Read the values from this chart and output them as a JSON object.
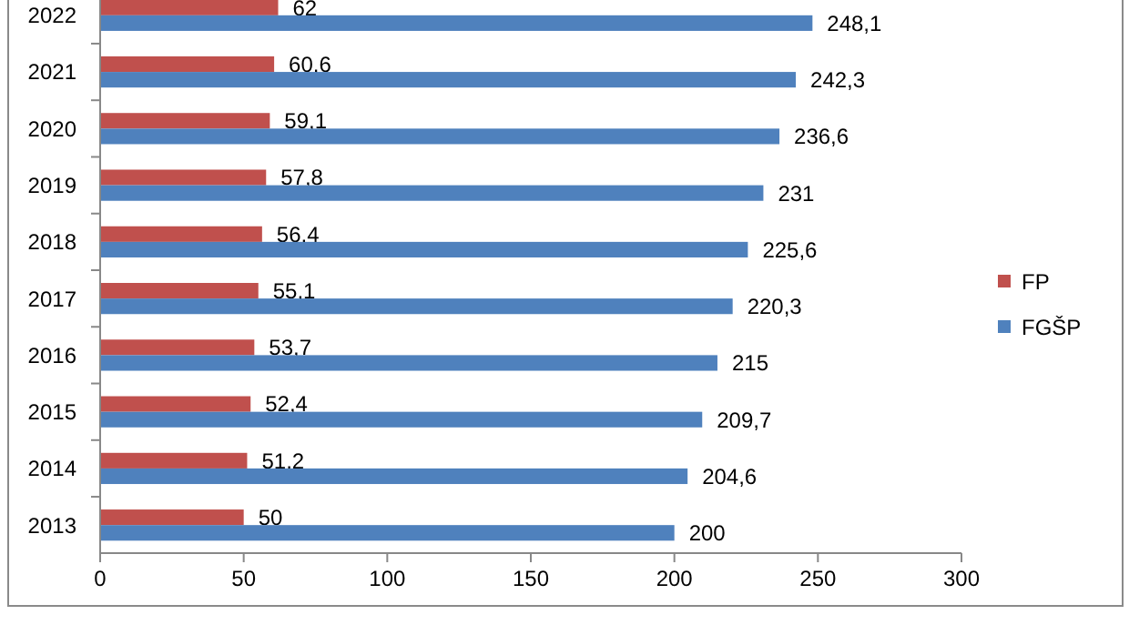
{
  "chart_data": {
    "type": "bar",
    "orientation": "horizontal",
    "categories": [
      "2022",
      "2021",
      "2020",
      "2019",
      "2018",
      "2017",
      "2016",
      "2015",
      "2014",
      "2013"
    ],
    "series": [
      {
        "name": "FP",
        "color": "#c0504d",
        "values": [
          62,
          60.6,
          59.1,
          57.8,
          56.4,
          55.1,
          53.7,
          52.4,
          51.2,
          50
        ],
        "value_labels": [
          "62",
          "60,6",
          "59,1",
          "57,8",
          "56,4",
          "55,1",
          "53,7",
          "52,4",
          "51,2",
          "50"
        ]
      },
      {
        "name": "FGŠP",
        "color": "#4f81bd",
        "values": [
          248.1,
          242.3,
          236.6,
          231,
          225.6,
          220.3,
          215,
          209.7,
          204.6,
          200
        ],
        "value_labels": [
          "248,1",
          "242,3",
          "236,6",
          "231",
          "225,6",
          "220,3",
          "215",
          "209,7",
          "204,6",
          "200"
        ]
      }
    ],
    "xlim": [
      0,
      300
    ],
    "xticks": [
      0,
      50,
      100,
      150,
      200,
      250,
      300
    ],
    "grid": false,
    "legend": "right"
  }
}
